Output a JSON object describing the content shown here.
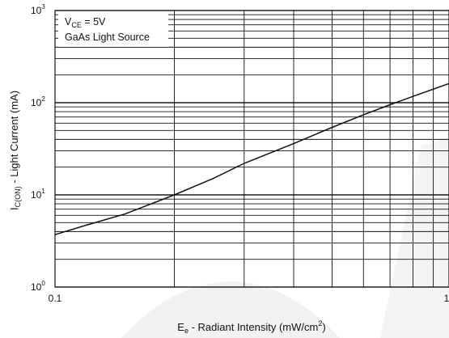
{
  "chart_data": {
    "type": "line",
    "xscale": "log",
    "yscale": "log",
    "xlim": [
      0.1,
      1
    ],
    "ylim": [
      1,
      1000
    ],
    "grid": true,
    "x_ticks": [
      {
        "value": 0.1,
        "label": "0.1"
      },
      {
        "value": 1,
        "label": "1"
      }
    ],
    "y_ticks": [
      {
        "value": 1,
        "base": "10",
        "exp": "0"
      },
      {
        "value": 10,
        "base": "10",
        "exp": "1"
      },
      {
        "value": 100,
        "base": "10",
        "exp": "2"
      },
      {
        "value": 1000,
        "base": "10",
        "exp": "3"
      }
    ],
    "xlabel": {
      "main": "E",
      "sub": "e",
      "rest": " - Radiant Intensity (mW/cm",
      "sup": "2",
      "end": ")"
    },
    "ylabel": {
      "main": "I",
      "sub": "C(ON)",
      "rest": "  - Light Current (mA)"
    },
    "annotation": {
      "line1_main": "V",
      "line1_sub": "CE",
      "line1_rest": " = 5V",
      "line2": "GaAs Light Source"
    },
    "series": [
      {
        "x": [
          0.1,
          0.12,
          0.15,
          0.2,
          0.25,
          0.3,
          0.4,
          0.5,
          0.6,
          0.7,
          0.8,
          1.0
        ],
        "y": [
          3.7,
          4.7,
          6.2,
          10,
          15,
          22,
          36,
          54,
          74,
          95,
          117,
          165
        ]
      }
    ]
  }
}
